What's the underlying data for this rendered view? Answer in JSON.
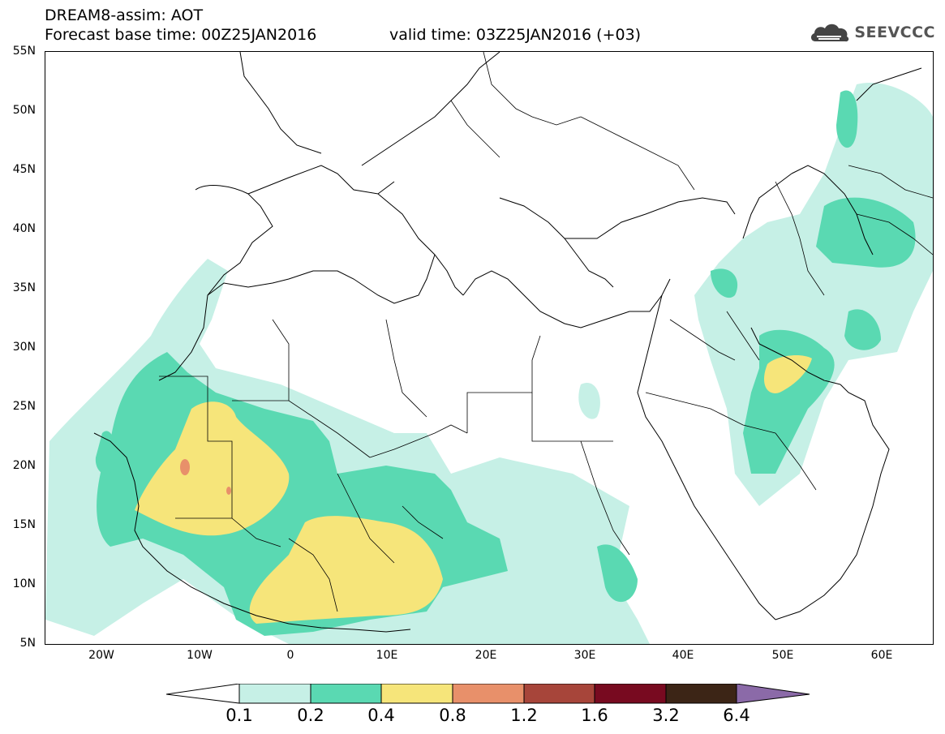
{
  "header": {
    "title": "DREAM8-assim: AOT",
    "base_time": "Forecast base time: 00Z25JAN2016",
    "valid_time": "valid time: 03Z25JAN2016 (+03)"
  },
  "logo": {
    "text": "SEEVCCC",
    "icon": "cloud-logo-icon"
  },
  "map": {
    "lon_range": [
      -25,
      65
    ],
    "lat_range": [
      5,
      55
    ],
    "lat_labels": [
      "55N",
      "50N",
      "45N",
      "40N",
      "35N",
      "30N",
      "25N",
      "20N",
      "15N",
      "10N",
      "5N"
    ],
    "lon_labels": [
      "20W",
      "10W",
      "0",
      "10E",
      "20E",
      "30E",
      "40E",
      "50E",
      "60E"
    ]
  },
  "legend": {
    "levels": [
      "0.1",
      "0.2",
      "0.4",
      "0.8",
      "1.2",
      "1.6",
      "3.2",
      "6.4"
    ],
    "colors": [
      "#ffffff",
      "#c6f0e6",
      "#5ad9b2",
      "#f6e57a",
      "#e8906a",
      "#a7453a",
      "#780a20",
      "#3c2516",
      "#8b6aa8"
    ]
  }
}
